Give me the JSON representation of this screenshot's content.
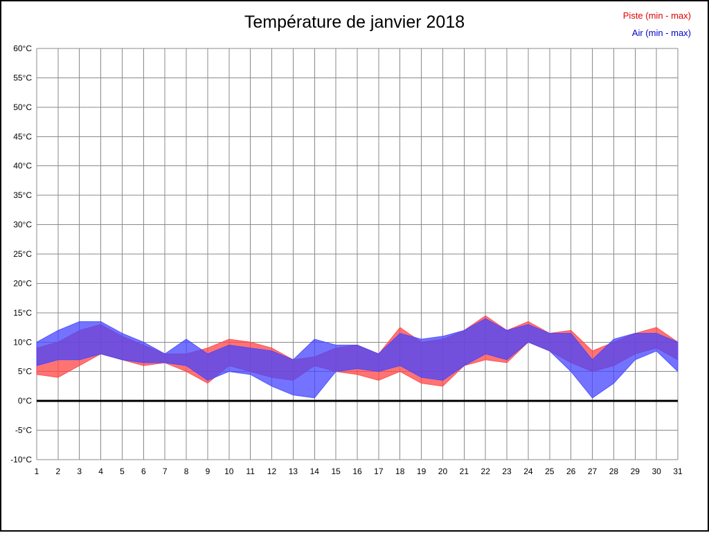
{
  "chart_data": {
    "type": "area",
    "title": "Température de janvier 2018",
    "xlabel": "",
    "ylabel": "",
    "x": [
      1,
      2,
      3,
      4,
      5,
      6,
      7,
      8,
      9,
      10,
      11,
      12,
      13,
      14,
      15,
      16,
      17,
      18,
      19,
      20,
      21,
      22,
      23,
      24,
      25,
      26,
      27,
      28,
      29,
      30,
      31
    ],
    "ylim": [
      -10,
      60
    ],
    "yticks": [
      {
        "value": 60,
        "label": "60°C"
      },
      {
        "value": 55,
        "label": "55°C"
      },
      {
        "value": 50,
        "label": "50°C"
      },
      {
        "value": 45,
        "label": "45°C"
      },
      {
        "value": 40,
        "label": "40°C"
      },
      {
        "value": 35,
        "label": "35°C"
      },
      {
        "value": 30,
        "label": "30°C"
      },
      {
        "value": 25,
        "label": "25°C"
      },
      {
        "value": 20,
        "label": "20°C"
      },
      {
        "value": 15,
        "label": "15°C"
      },
      {
        "value": 10,
        "label": "10°C"
      },
      {
        "value": 5,
        "label": "5°C"
      },
      {
        "value": 0,
        "label": "0°C"
      },
      {
        "value": -5,
        "label": "-5°C"
      },
      {
        "value": -10,
        "label": "-10°C"
      }
    ],
    "grid": true,
    "zero_line": true,
    "legend_position": "top-right",
    "bands": [
      {
        "name": "Piste (min - max)",
        "color": "#ff4444",
        "legend_color": "#dd0000",
        "min": [
          4.5,
          4,
          6,
          8,
          7,
          6,
          6.5,
          5,
          3,
          6,
          5,
          4,
          3.5,
          6,
          5,
          4.5,
          3.5,
          5,
          3,
          2.5,
          6,
          7,
          6.5,
          10,
          8.5,
          6.5,
          5,
          6,
          8,
          9,
          7
        ],
        "max": [
          9,
          10,
          12,
          13,
          11,
          9.5,
          8,
          8,
          9,
          10.5,
          10,
          9,
          7,
          7.5,
          9,
          9.5,
          8,
          12.5,
          10,
          10.5,
          12,
          14.5,
          12,
          13.5,
          11.5,
          12,
          8.5,
          10,
          11.5,
          12.5,
          10
        ]
      },
      {
        "name": "Air (min - max)",
        "color": "#4444ff",
        "legend_color": "#0000cc",
        "min": [
          6,
          7,
          7,
          8,
          7,
          6.5,
          6.5,
          6,
          3.5,
          5,
          4.5,
          2.5,
          1,
          0.5,
          5,
          5.5,
          5,
          6,
          4,
          3.5,
          6,
          8,
          7,
          10,
          8.5,
          5,
          0.5,
          3,
          7,
          8.5,
          5
        ],
        "max": [
          10,
          12,
          13.5,
          13.5,
          11.5,
          10,
          8,
          10.5,
          8,
          9.5,
          9,
          8.5,
          7,
          10.5,
          9.5,
          9.5,
          8,
          11.5,
          10.5,
          11,
          12,
          14,
          12,
          13,
          11.5,
          11.5,
          7,
          10.5,
          11.5,
          11.5,
          10
        ]
      }
    ]
  }
}
